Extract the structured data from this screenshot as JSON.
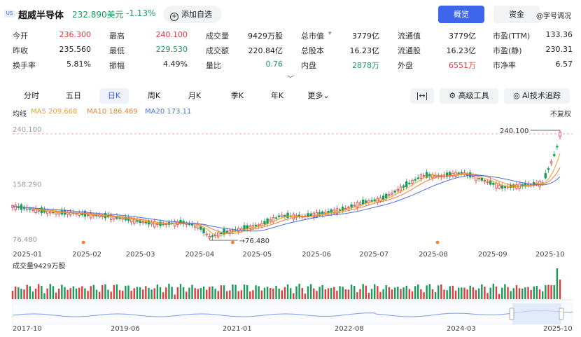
{
  "header": {
    "market_badge": "US",
    "stock_name": "超威半导体",
    "price": "232.890美元",
    "change_pct": "-1.13%",
    "add_watchlist_label": "添加自选",
    "tabs": [
      {
        "label": "概览",
        "active": true
      },
      {
        "label": "资金",
        "active": false
      }
    ],
    "more_label": "@字号调况"
  },
  "stats": [
    {
      "label": "今开",
      "value": "236.300",
      "color": "up"
    },
    {
      "label": "最高",
      "value": "240.100",
      "color": "up"
    },
    {
      "label": "成交量",
      "value": "9429万股",
      "color": "neu"
    },
    {
      "label": "总市值",
      "value": "3779亿",
      "color": "neu"
    },
    {
      "label": "流通值",
      "value": "3779亿",
      "color": "neu"
    },
    {
      "label": "市盈(TTM)",
      "value": "133.36",
      "color": "neu"
    },
    {
      "label": "昨收",
      "value": "235.560",
      "color": "neu"
    },
    {
      "label": "最低",
      "value": "229.530",
      "color": "dn"
    },
    {
      "label": "成交额",
      "value": "220.84亿",
      "color": "neu"
    },
    {
      "label": "总股本",
      "value": "16.23亿",
      "color": "neu"
    },
    {
      "label": "流通股",
      "value": "16.23亿",
      "color": "neu"
    },
    {
      "label": "市盈(静)",
      "value": "230.31",
      "color": "neu"
    },
    {
      "label": "换手率",
      "value": "5.81%",
      "color": "neu"
    },
    {
      "label": "振幅",
      "value": "4.49%",
      "color": "neu"
    },
    {
      "label": "量比",
      "value": "0.76",
      "color": "dn"
    },
    {
      "label": "内盘",
      "value": "2878万",
      "color": "dn"
    },
    {
      "label": "外盘",
      "value": "6551万",
      "color": "up"
    },
    {
      "label": "市净率",
      "value": "6.57",
      "color": "neu"
    }
  ],
  "periods": [
    {
      "label": "分时",
      "active": false
    },
    {
      "label": "五日",
      "active": false
    },
    {
      "label": "日K",
      "active": true
    },
    {
      "label": "周K",
      "active": false
    },
    {
      "label": "月K",
      "active": false
    },
    {
      "label": "季K",
      "active": false
    },
    {
      "label": "年K",
      "active": false
    },
    {
      "label": "更多",
      "active": false
    }
  ],
  "tools": {
    "fit_label": "|↔|",
    "advanced_label": "高级工具",
    "ai_label": "AI技术追踪"
  },
  "ma_legend": {
    "title": "均线",
    "ma5": "MA5 209.668",
    "ma10": "MA10 186.469",
    "ma20": "MA20 173.11",
    "adjust": "不复权"
  },
  "colors": {
    "up": "#e03c3c",
    "down": "#1a9b5c",
    "ma5": "#f0a020",
    "ma10": "#f07f3c",
    "ma20": "#4a6fe0",
    "accent": "#3d66ea"
  },
  "chart_data": {
    "type": "candlestick",
    "price_labels": [
      "240.100",
      "158.290",
      "76.480"
    ],
    "y_ticks": [
      240.1,
      158.29,
      76.48
    ],
    "high_marker": "240.100",
    "low_marker": "76.480",
    "x_ticks": [
      "2025-01",
      "2025-02",
      "2025-03",
      "2025-04",
      "2025-05",
      "2025-06",
      "2025-07",
      "2025-08",
      "2025-09",
      "2025-10"
    ],
    "close_path": [
      [
        "2024-12-26",
        127
      ],
      [
        "2025-01-06",
        122
      ],
      [
        "2025-01-15",
        118
      ],
      [
        "2025-01-27",
        117
      ],
      [
        "2025-02-05",
        114
      ],
      [
        "2025-02-14",
        112
      ],
      [
        "2025-02-24",
        108
      ],
      [
        "2025-03-05",
        103
      ],
      [
        "2025-03-14",
        100
      ],
      [
        "2025-03-24",
        103
      ],
      [
        "2025-04-02",
        98
      ],
      [
        "2025-04-08",
        81
      ],
      [
        "2025-04-15",
        88
      ],
      [
        "2025-04-24",
        93
      ],
      [
        "2025-05-05",
        100
      ],
      [
        "2025-05-15",
        113
      ],
      [
        "2025-05-27",
        112
      ],
      [
        "2025-06-06",
        117
      ],
      [
        "2025-06-16",
        122
      ],
      [
        "2025-06-26",
        132
      ],
      [
        "2025-07-07",
        138
      ],
      [
        "2025-07-17",
        154
      ],
      [
        "2025-07-28",
        173
      ],
      [
        "2025-08-07",
        172
      ],
      [
        "2025-08-18",
        177
      ],
      [
        "2025-08-28",
        167
      ],
      [
        "2025-09-08",
        155
      ],
      [
        "2025-09-18",
        158
      ],
      [
        "2025-09-29",
        162
      ],
      [
        "2025-10-06",
        210
      ],
      [
        "2025-10-08",
        235
      ]
    ],
    "volume_label": "成交量9429万股",
    "overview_x_ticks": [
      "2017-10",
      "2019-06",
      "2021-01",
      "2022-08",
      "2024-03",
      "2025-10"
    ]
  }
}
